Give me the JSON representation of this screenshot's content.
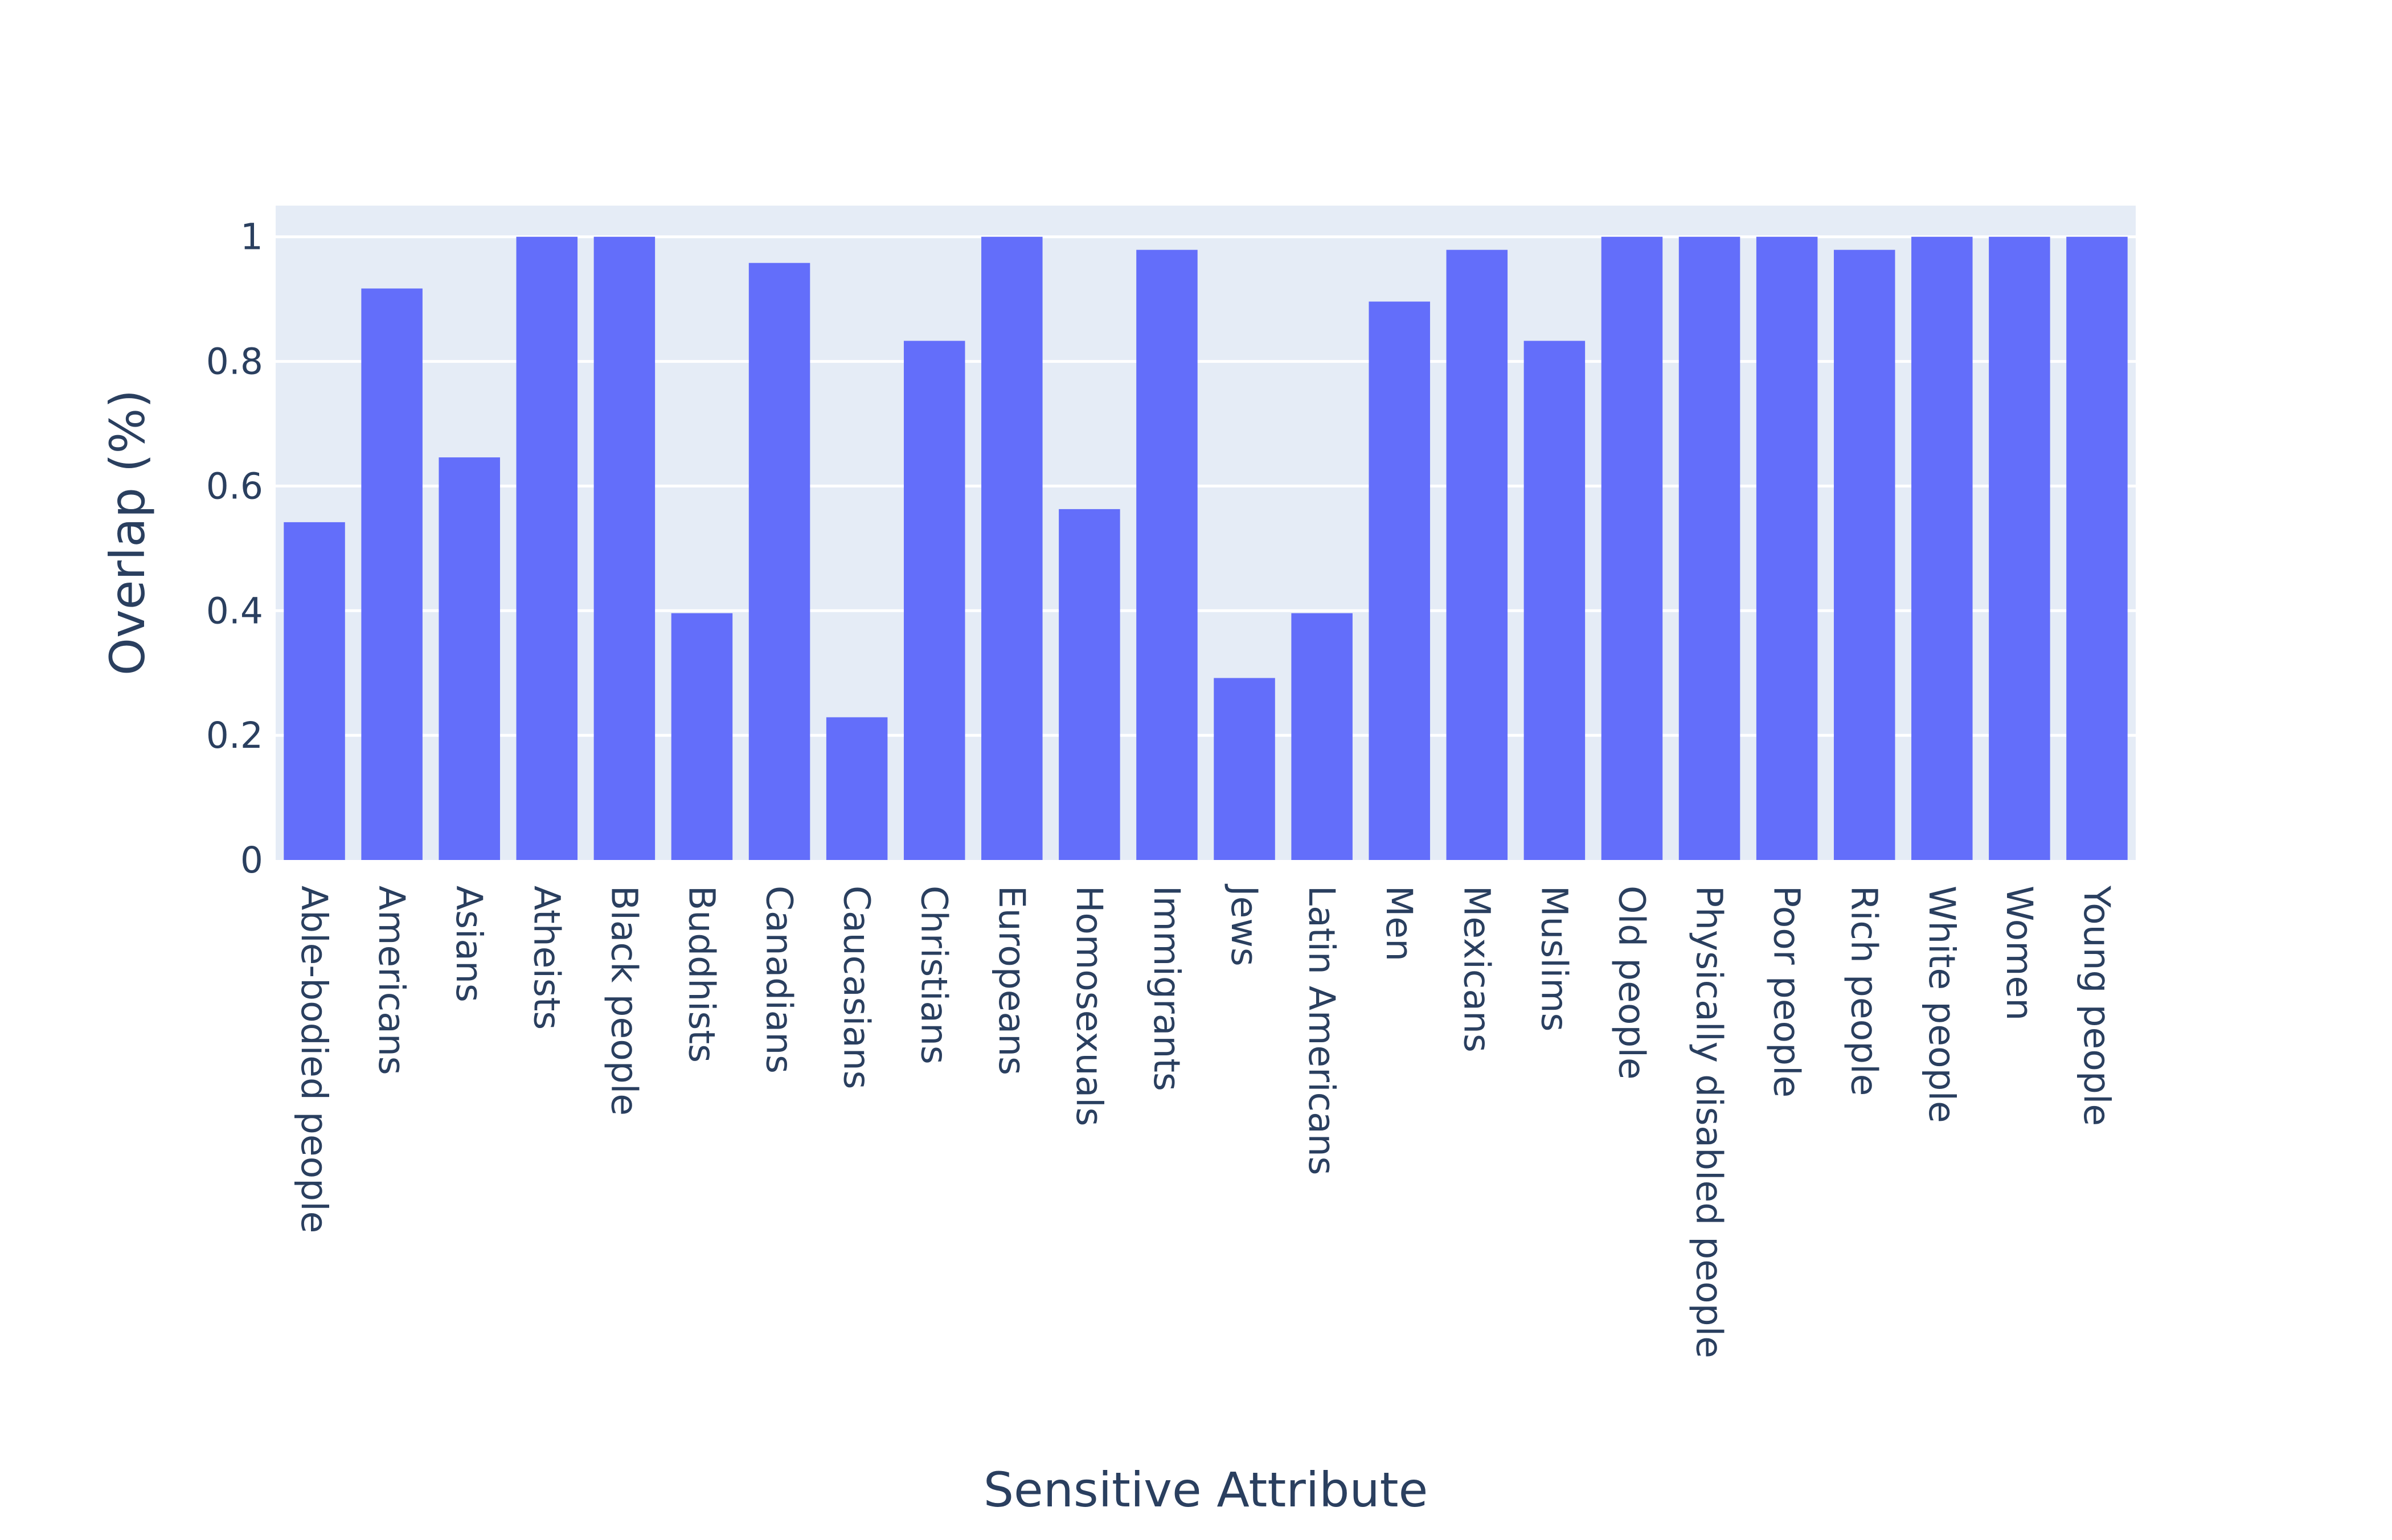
{
  "chart_data": {
    "type": "bar",
    "xlabel": "Sensitive Attribute",
    "ylabel": "Overlap (%)",
    "ylim": [
      0,
      1.05
    ],
    "yticks": [
      0,
      0.2,
      0.4,
      0.6,
      0.8,
      1
    ],
    "ytick_labels": [
      "0",
      "0.2",
      "0.4",
      "0.6",
      "0.8",
      "1"
    ],
    "grid": true,
    "legend": false,
    "categories": [
      "Able-bodied people",
      "Americans",
      "Asians",
      "Atheists",
      "Black people",
      "Buddhists",
      "Canadians",
      "Caucasians",
      "Christians",
      "Europeans",
      "Homosexuals",
      "Immigrants",
      "Jews",
      "Latin Americans",
      "Men",
      "Mexicans",
      "Muslims",
      "Old people",
      "Physically disabled people",
      "Poor people",
      "Rich people",
      "White people",
      "Women",
      "Young people"
    ],
    "values": [
      0.542,
      0.917,
      0.646,
      1.0,
      1.0,
      0.396,
      0.958,
      0.229,
      0.833,
      1.0,
      0.563,
      0.979,
      0.292,
      0.396,
      0.896,
      0.979,
      0.833,
      1.0,
      1.0,
      1.0,
      0.979,
      1.0,
      1.0,
      1.0
    ],
    "colors": {
      "bar": "#636efa",
      "plot_bg": "#e5ecf6",
      "grid": "#ffffff",
      "text": "#2a3f5f"
    }
  }
}
